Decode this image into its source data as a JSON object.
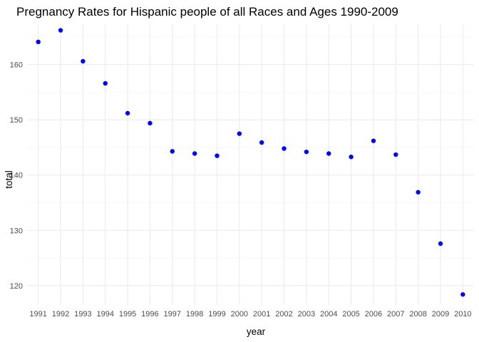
{
  "chart_data": {
    "type": "scatter",
    "title": "Pregnancy Rates for Hispanic people of all Races and Ages 1990-2009",
    "xlabel": "year",
    "ylabel": "total",
    "x_categories": [
      "1991",
      "1992",
      "1993",
      "1994",
      "1995",
      "1996",
      "1997",
      "1998",
      "1999",
      "2000",
      "2001",
      "2002",
      "2003",
      "2004",
      "2005",
      "2006",
      "2007",
      "2008",
      "2009",
      "2010"
    ],
    "y_ticks": [
      120,
      130,
      140,
      150,
      160
    ],
    "ylim": [
      116.5,
      167.3
    ],
    "grid": true,
    "legend": "none",
    "point_color": "#0000ff",
    "series": [
      {
        "x": [
          "1991",
          "1992",
          "1993",
          "1994",
          "1995",
          "1996",
          "1997",
          "1998",
          "1999",
          "2000",
          "2001",
          "2002",
          "2003",
          "2004",
          "2005",
          "2006",
          "2007",
          "2008",
          "2009",
          "2010"
        ],
        "y": [
          164.1,
          166.2,
          160.6,
          156.6,
          151.2,
          149.4,
          144.3,
          143.9,
          143.5,
          147.5,
          145.9,
          144.8,
          144.2,
          143.9,
          143.3,
          146.2,
          143.7,
          136.9,
          127.6,
          118.4
        ]
      }
    ]
  }
}
